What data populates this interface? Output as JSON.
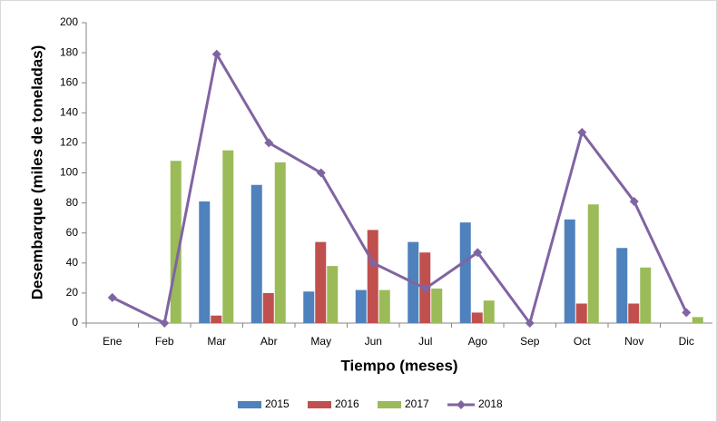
{
  "chart_data": {
    "type": "bar_line",
    "xlabel": "Tiempo (meses)",
    "ylabel": "Desembarque (miles de toneladas)",
    "categories": [
      "Ene",
      "Feb",
      "Mar",
      "Abr",
      "May",
      "Jun",
      "Jul",
      "Ago",
      "Sep",
      "Oct",
      "Nov",
      "Dic"
    ],
    "series": [
      {
        "name": "2015",
        "type": "bar",
        "color": "#4f81bd",
        "values": [
          0,
          0,
          81,
          92,
          21,
          22,
          54,
          67,
          0,
          69,
          50,
          0
        ]
      },
      {
        "name": "2016",
        "type": "bar",
        "color": "#c0504d",
        "values": [
          0,
          0,
          5,
          20,
          54,
          62,
          47,
          7,
          0,
          13,
          13,
          0
        ]
      },
      {
        "name": "2017",
        "type": "bar",
        "color": "#9bbb59",
        "values": [
          0,
          108,
          115,
          107,
          38,
          22,
          23,
          15,
          0,
          79,
          37,
          4
        ]
      },
      {
        "name": "2018",
        "type": "line",
        "color": "#8064a2",
        "values": [
          17,
          0,
          179,
          120,
          100,
          40,
          23,
          47,
          0,
          127,
          81,
          7
        ]
      }
    ],
    "ylim": [
      0,
      200
    ],
    "yticks": [
      0,
      20,
      40,
      60,
      80,
      100,
      120,
      140,
      160,
      180,
      200
    ],
    "grid": false,
    "legend": "bottom"
  }
}
